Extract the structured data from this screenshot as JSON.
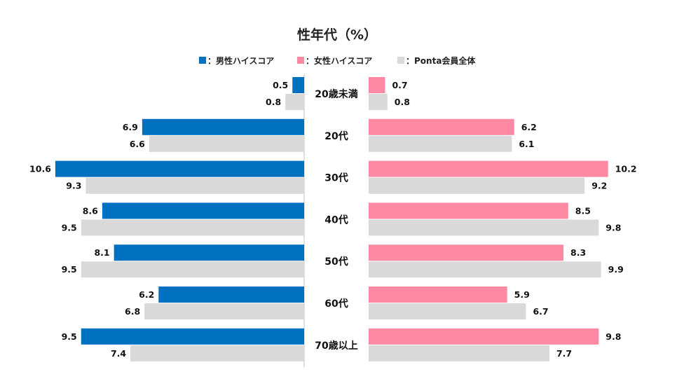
{
  "chart_data": {
    "type": "bar",
    "orientation": "horizontal-butterfly",
    "title": "性年代（%）",
    "categories": [
      "20歳未満",
      "20代",
      "30代",
      "40代",
      "50代",
      "60代",
      "70歳以上"
    ],
    "legend": [
      {
        "label": "：男性ハイスコア",
        "color": "#0070c0"
      },
      {
        "label": "：女性ハイスコア",
        "color": "#ff88a2"
      },
      {
        "label": "：Ponta会員全体",
        "color": "#d9d9d9"
      }
    ],
    "left": {
      "series": [
        {
          "name": "男性ハイスコア",
          "color": "#0070c0",
          "values": [
            0.5,
            6.9,
            10.6,
            8.6,
            8.1,
            6.2,
            9.5
          ]
        },
        {
          "name": "Ponta会員全体",
          "color": "#d9d9d9",
          "values": [
            0.8,
            6.6,
            9.3,
            9.5,
            9.5,
            6.8,
            7.4
          ]
        }
      ]
    },
    "right": {
      "series": [
        {
          "name": "女性ハイスコア",
          "color": "#ff88a2",
          "values": [
            0.7,
            6.2,
            10.2,
            8.5,
            8.3,
            5.9,
            9.8
          ]
        },
        {
          "name": "Ponta会員全体",
          "color": "#d9d9d9",
          "values": [
            0.8,
            6.1,
            9.2,
            9.8,
            9.9,
            6.7,
            7.7
          ]
        }
      ]
    },
    "xlim": [
      0,
      10.6
    ],
    "grid": false,
    "legend_position": "top-center"
  }
}
